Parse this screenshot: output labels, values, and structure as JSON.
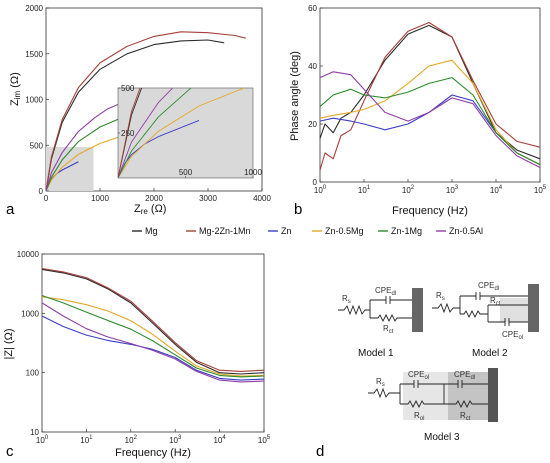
{
  "colors": {
    "Mg": "#2b2b2b",
    "Mg-2Zn-1Mn": "#a5403a",
    "Zn": "#3a3ec4",
    "Zn-0.5Mg": "#e3a826",
    "Zn-1Mg": "#2e8a2e",
    "Zn-0.5Al": "#8e3fa6"
  },
  "panel_labels": [
    "a",
    "b",
    "c",
    "d"
  ],
  "legend": [
    "Mg",
    "Mg-2Zn-1Mn",
    "Zn",
    "Zn-0.5Mg",
    "Zn-1Mg",
    "Zn-0.5Al"
  ],
  "chart_data": [
    {
      "id": "a",
      "type": "line",
      "xlabel_main": "Z",
      "xlabel_sub": "re",
      "xlabel_unit": " (Ω)",
      "ylabel_main": "Z",
      "ylabel_sub": "im",
      "ylabel_unit": " (Ω)",
      "xlim": [
        0,
        4000
      ],
      "ylim": [
        0,
        2000
      ],
      "xticks": [
        "0",
        "1000",
        "2000",
        "3000",
        "4000"
      ],
      "yticks": [
        "0",
        "500",
        "1000",
        "1500",
        "2000"
      ],
      "series": [
        {
          "name": "Mg",
          "x": [
            0,
            100,
            300,
            600,
            1000,
            1500,
            2000,
            2500,
            3000,
            3300
          ],
          "y": [
            0,
            350,
            750,
            1080,
            1330,
            1500,
            1600,
            1640,
            1650,
            1620
          ]
        },
        {
          "name": "Mg-2Zn-1Mn",
          "x": [
            0,
            100,
            300,
            600,
            1000,
            1500,
            2000,
            2500,
            3000,
            3500,
            3700
          ],
          "y": [
            0,
            370,
            780,
            1130,
            1400,
            1580,
            1690,
            1740,
            1730,
            1700,
            1670
          ]
        },
        {
          "name": "Zn",
          "x": [
            0,
            50,
            100,
            200,
            300,
            400,
            500,
            600
          ],
          "y": [
            0,
            80,
            130,
            190,
            230,
            260,
            290,
            320
          ]
        },
        {
          "name": "Zn-0.5Mg",
          "x": [
            0,
            100,
            300,
            600,
            1000,
            1400,
            1700
          ],
          "y": [
            0,
            120,
            260,
            400,
            520,
            600,
            650
          ]
        },
        {
          "name": "Zn-1Mg",
          "x": [
            0,
            100,
            300,
            600,
            1000,
            1400,
            1750
          ],
          "y": [
            0,
            150,
            340,
            540,
            700,
            800,
            870
          ]
        },
        {
          "name": "Zn-0.5Al",
          "x": [
            0,
            100,
            300,
            600,
            900,
            1150,
            1350
          ],
          "y": [
            0,
            200,
            420,
            650,
            800,
            900,
            950
          ]
        }
      ],
      "inset": {
        "xlim": [
          0,
          1000
        ],
        "ylim": [
          0,
          500
        ],
        "xticks": [
          "500",
          "1000"
        ],
        "yticks": [
          "250",
          "500"
        ],
        "x_range_shown": [
          0,
          880
        ],
        "y_range_shown": [
          0,
          480
        ]
      }
    },
    {
      "id": "b",
      "type": "line",
      "xlabel": "Frequency (Hz)",
      "ylabel": "Phase angle (deg)",
      "xscale": "log",
      "xlim": [
        1,
        100000
      ],
      "ylim": [
        0,
        60
      ],
      "xticks": [
        "10^0",
        "10^1",
        "10^2",
        "10^3",
        "10^4",
        "10^5"
      ],
      "yticks": [
        "0",
        "20",
        "40",
        "60"
      ],
      "series": [
        {
          "name": "Mg",
          "x": [
            1,
            1.3,
            2,
            3,
            5,
            10,
            30,
            100,
            300,
            1000,
            3000,
            10000,
            30000,
            100000
          ],
          "y": [
            15,
            20,
            17,
            22,
            24,
            30,
            42,
            51,
            54,
            50,
            34,
            17,
            11,
            8
          ]
        },
        {
          "name": "Mg-2Zn-1Mn",
          "x": [
            1,
            1.3,
            2,
            3,
            5,
            10,
            30,
            100,
            300,
            1000,
            3000,
            10000,
            30000,
            100000
          ],
          "y": [
            4,
            10,
            8,
            16,
            18,
            28,
            43,
            52,
            55,
            50,
            35,
            20,
            14,
            12
          ]
        },
        {
          "name": "Zn",
          "x": [
            1,
            2,
            5,
            10,
            30,
            100,
            300,
            1000,
            3000,
            10000,
            30000,
            100000
          ],
          "y": [
            21,
            22,
            21,
            20,
            18,
            20,
            24,
            30,
            28,
            17,
            10,
            6
          ]
        },
        {
          "name": "Zn-0.5Mg",
          "x": [
            1,
            2,
            5,
            10,
            30,
            100,
            300,
            1000,
            3000,
            10000,
            30000,
            100000
          ],
          "y": [
            22,
            23,
            24,
            25,
            28,
            34,
            40,
            42,
            34,
            18,
            10,
            6
          ]
        },
        {
          "name": "Zn-1Mg",
          "x": [
            1,
            2,
            5,
            10,
            30,
            100,
            300,
            1000,
            3000,
            10000,
            30000,
            100000
          ],
          "y": [
            26,
            30,
            32,
            30,
            29,
            31,
            34,
            36,
            30,
            17,
            10,
            6
          ]
        },
        {
          "name": "Zn-0.5Al",
          "x": [
            1,
            2,
            5,
            10,
            30,
            100,
            300,
            1000,
            3000,
            10000,
            30000,
            100000
          ],
          "y": [
            36,
            38,
            37,
            32,
            24,
            21,
            24,
            29,
            27,
            16,
            9,
            5
          ]
        }
      ]
    },
    {
      "id": "c",
      "type": "line",
      "xlabel": "Frequency (Hz)",
      "ylabel": "|Z| (Ω)",
      "xscale": "log",
      "yscale": "log",
      "xlim": [
        1,
        100000
      ],
      "ylim": [
        10,
        10000
      ],
      "xticks": [
        "10^0",
        "10^1",
        "10^2",
        "10^3",
        "10^4",
        "10^5"
      ],
      "yticks": [
        "10",
        "100",
        "1000",
        "10000"
      ],
      "series": [
        {
          "name": "Mg",
          "x": [
            1,
            3,
            10,
            30,
            100,
            300,
            1000,
            3000,
            10000,
            30000,
            100000
          ],
          "y": [
            5500,
            4800,
            3800,
            2600,
            1500,
            700,
            300,
            150,
            100,
            95,
            100
          ]
        },
        {
          "name": "Mg-2Zn-1Mn",
          "x": [
            1,
            3,
            10,
            30,
            100,
            300,
            1000,
            3000,
            10000,
            30000,
            100000
          ],
          "y": [
            5700,
            5000,
            4000,
            2700,
            1600,
            750,
            320,
            160,
            110,
            105,
            110
          ]
        },
        {
          "name": "Zn",
          "x": [
            1,
            3,
            10,
            30,
            100,
            300,
            1000,
            3000,
            10000,
            30000,
            100000
          ],
          "y": [
            900,
            600,
            430,
            350,
            300,
            250,
            180,
            110,
            80,
            75,
            78
          ]
        },
        {
          "name": "Zn-0.5Mg",
          "x": [
            1,
            3,
            10,
            30,
            100,
            300,
            1000,
            3000,
            10000,
            30000,
            100000
          ],
          "y": [
            1900,
            1700,
            1400,
            1100,
            750,
            450,
            230,
            130,
            95,
            88,
            90
          ]
        },
        {
          "name": "Zn-1Mg",
          "x": [
            1,
            3,
            10,
            30,
            100,
            300,
            1000,
            3000,
            10000,
            30000,
            100000
          ],
          "y": [
            2000,
            1500,
            1050,
            760,
            540,
            350,
            200,
            120,
            90,
            85,
            88
          ]
        },
        {
          "name": "Zn-0.5Al",
          "x": [
            1,
            3,
            10,
            30,
            100,
            300,
            1000,
            3000,
            10000,
            30000,
            100000
          ],
          "y": [
            1500,
            900,
            550,
            400,
            310,
            240,
            170,
            105,
            75,
            70,
            72
          ]
        }
      ]
    }
  ],
  "models": [
    {
      "label": "Model 1",
      "elements": [
        "R",
        "s",
        "CPE",
        "dl",
        "R",
        "ct"
      ]
    },
    {
      "label": "Model 2",
      "elements": [
        "R",
        "s",
        "CPE",
        "dl",
        "R",
        "ct",
        "CPE",
        "ol"
      ]
    },
    {
      "label": "Model 3",
      "elements": [
        "R",
        "s",
        "CPE",
        "ol",
        "R",
        "ol",
        "CPE",
        "dl",
        "R",
        "ct"
      ]
    }
  ]
}
